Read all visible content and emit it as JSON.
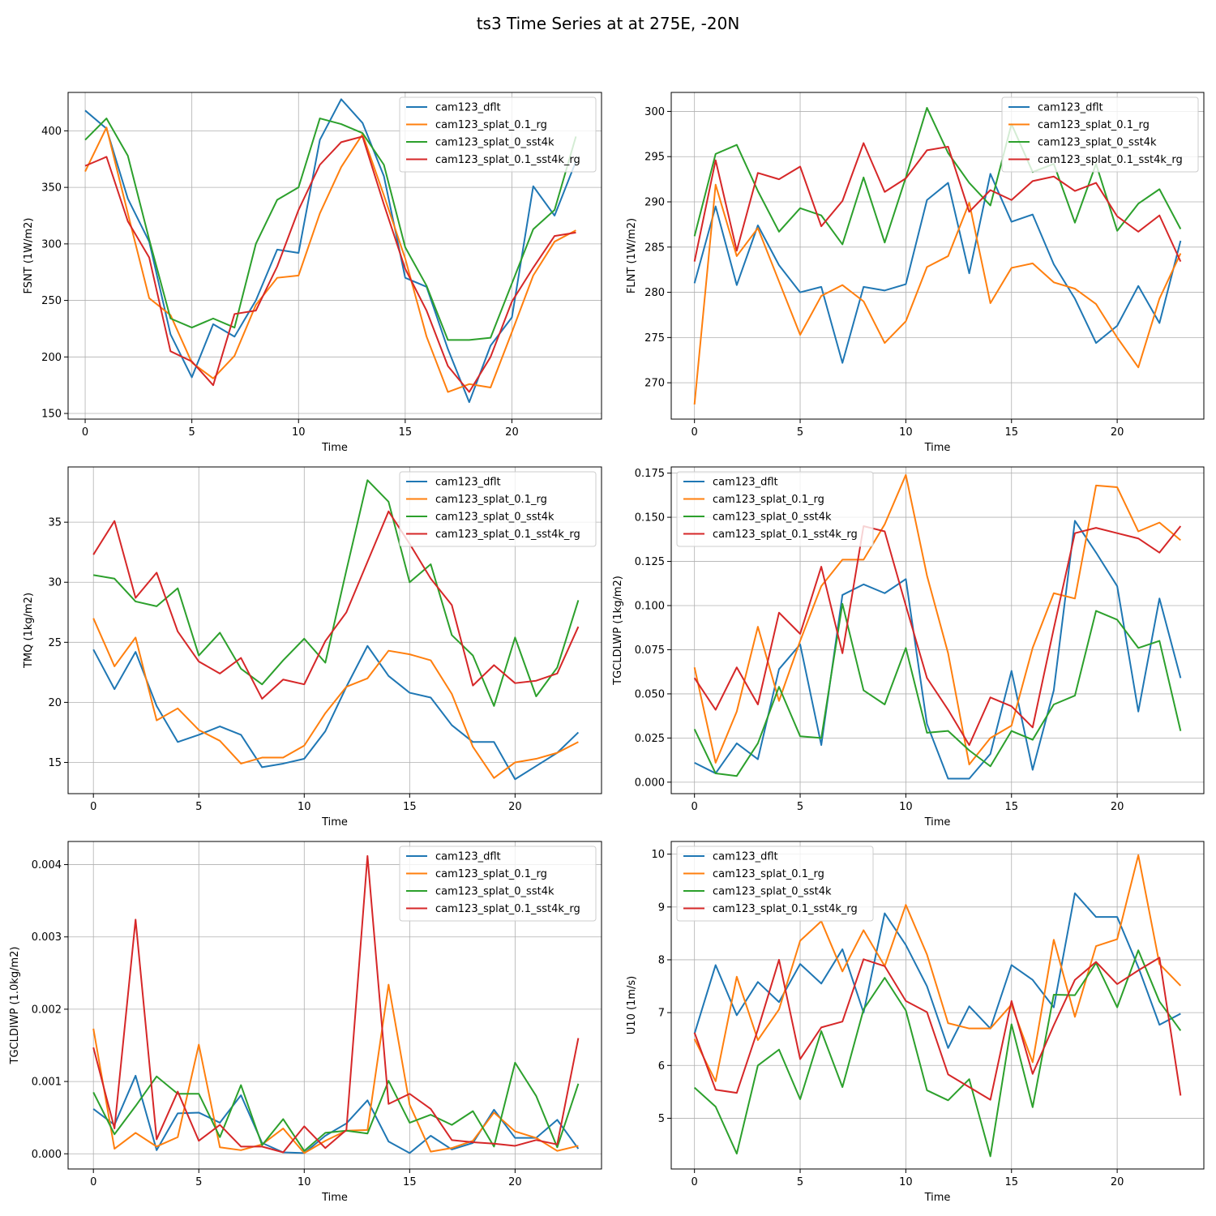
{
  "figure": {
    "title": "ts3 Time Series at at 275E, -20N"
  },
  "colors": {
    "cam123_dflt": "#1f77b4",
    "cam123_splat_0.1_rg": "#ff7f0e",
    "cam123_splat_0_sst4k": "#2ca02c",
    "cam123_splat_0.1_sst4k_rg": "#d62728"
  },
  "chart_data": [
    {
      "type": "line",
      "title": "",
      "xlabel": "Time",
      "ylabel": "FSNT (1W/m2)",
      "xlim": [
        -0.8,
        24.2
      ],
      "ylim": [
        145,
        434
      ],
      "xticks": [
        0,
        5,
        10,
        15,
        20
      ],
      "yticks": [
        150,
        200,
        250,
        300,
        350,
        400
      ],
      "legend_position": "top-right",
      "grid": true,
      "x": [
        0,
        1,
        2,
        3,
        4,
        5,
        6,
        7,
        8,
        9,
        10,
        11,
        12,
        13,
        14,
        15,
        16,
        17,
        18,
        19,
        20,
        21,
        22,
        23
      ],
      "series": [
        {
          "name": "cam123_dflt",
          "values": [
            418,
            402,
            340,
            302,
            220,
            182,
            229,
            218,
            250,
            295,
            292,
            392,
            428,
            407,
            360,
            270,
            262,
            207,
            160,
            210,
            235,
            351,
            325,
            373
          ]
        },
        {
          "name": "cam123_splat_0.1_rg",
          "values": [
            364,
            403,
            327,
            252,
            237,
            195,
            181,
            201,
            246,
            270,
            272,
            327,
            368,
            397,
            343,
            287,
            218,
            169,
            176,
            173,
            222,
            272,
            302,
            312
          ]
        },
        {
          "name": "cam123_splat_0_sst4k",
          "values": [
            392,
            411,
            378,
            304,
            234,
            226,
            234,
            226,
            300,
            339,
            350,
            411,
            406,
            398,
            370,
            297,
            263,
            215,
            215,
            217,
            265,
            313,
            330,
            395
          ]
        },
        {
          "name": "cam123_splat_0.1_sst4k_rg",
          "values": [
            369,
            377,
            320,
            288,
            205,
            196,
            175,
            238,
            241,
            280,
            330,
            370,
            390,
            395,
            335,
            278,
            241,
            192,
            169,
            200,
            249,
            279,
            307,
            310
          ]
        }
      ]
    },
    {
      "type": "line",
      "title": "",
      "xlabel": "Time",
      "ylabel": "FLNT (1W/m2)",
      "xlim": [
        -1.1,
        24.1
      ],
      "ylim": [
        265.98,
        302.1
      ],
      "xticks": [
        0,
        5,
        10,
        15,
        20
      ],
      "yticks": [
        270,
        275,
        280,
        285,
        290,
        295,
        300
      ],
      "legend_position": "top-right",
      "grid": true,
      "x": [
        0,
        1,
        2,
        3,
        4,
        5,
        6,
        7,
        8,
        9,
        10,
        11,
        12,
        13,
        14,
        15,
        16,
        17,
        18,
        19,
        20,
        21,
        22,
        23
      ],
      "series": [
        {
          "name": "cam123_dflt",
          "values": [
            281,
            289.5,
            280.8,
            287.4,
            283,
            280,
            280.6,
            272.2,
            280.6,
            280.2,
            280.9,
            290.2,
            292.1,
            282.1,
            293.1,
            287.8,
            288.6,
            283.1,
            279.3,
            274.4,
            276.3,
            280.7,
            276.6,
            285.7
          ]
        },
        {
          "name": "cam123_splat_0.1_rg",
          "values": [
            267.6,
            291.9,
            284,
            287.1,
            281.2,
            275.3,
            279.6,
            280.8,
            279,
            274.4,
            276.8,
            282.8,
            284,
            289.9,
            278.8,
            282.7,
            283.2,
            281.1,
            280.4,
            278.7,
            275,
            271.7,
            279.3,
            284.3
          ]
        },
        {
          "name": "cam123_splat_0_sst4k",
          "values": [
            286.2,
            295.3,
            296.3,
            291.2,
            286.7,
            289.3,
            288.5,
            285.3,
            292.7,
            285.5,
            292.7,
            300.4,
            295.4,
            292.1,
            289.6,
            298.6,
            293.3,
            294.2,
            287.7,
            294.2,
            286.8,
            289.8,
            291.4,
            287
          ]
        },
        {
          "name": "cam123_splat_0.1_sst4k_rg",
          "values": [
            283.4,
            294.6,
            284.6,
            293.2,
            292.5,
            293.9,
            287.3,
            290.1,
            296.5,
            291.1,
            292.6,
            295.7,
            296.1,
            288.9,
            291.3,
            290.2,
            292.3,
            292.8,
            291.2,
            292.1,
            288.4,
            286.7,
            288.5,
            283.4
          ]
        }
      ]
    },
    {
      "type": "line",
      "title": "",
      "xlabel": "Time",
      "ylabel": "TMQ (1kg/m2)",
      "xlim": [
        -1.2,
        24.1
      ],
      "ylim": [
        12.4,
        39.6
      ],
      "xticks": [
        0,
        5,
        10,
        15,
        20
      ],
      "yticks": [
        15,
        20,
        25,
        30,
        35
      ],
      "legend_position": "top-right",
      "grid": true,
      "x": [
        0,
        1,
        2,
        3,
        4,
        5,
        6,
        7,
        8,
        9,
        10,
        11,
        12,
        13,
        14,
        15,
        16,
        17,
        18,
        19,
        20,
        21,
        22,
        23
      ],
      "series": [
        {
          "name": "cam123_dflt",
          "values": [
            24.4,
            21.1,
            24.2,
            19.7,
            16.7,
            17.3,
            18,
            17.3,
            14.6,
            14.9,
            15.3,
            17.6,
            21.3,
            24.7,
            22.2,
            20.8,
            20.4,
            18.1,
            16.7,
            16.7,
            13.6,
            14.7,
            15.8,
            17.5
          ]
        },
        {
          "name": "cam123_splat_0.1_rg",
          "values": [
            27,
            23,
            25.4,
            18.5,
            19.5,
            17.7,
            16.8,
            14.9,
            15.4,
            15.4,
            16.4,
            19.1,
            21.3,
            22,
            24.3,
            24,
            23.5,
            20.7,
            16.3,
            13.7,
            15,
            15.3,
            15.8,
            16.7
          ]
        },
        {
          "name": "cam123_splat_0_sst4k",
          "values": [
            30.6,
            30.3,
            28.4,
            28,
            29.5,
            23.9,
            25.8,
            22.8,
            21.5,
            23.5,
            25.3,
            23.3,
            31,
            38.5,
            36.7,
            30,
            31.5,
            25.6,
            23.9,
            19.7,
            25.4,
            20.5,
            22.9,
            28.5
          ]
        },
        {
          "name": "cam123_splat_0.1_sst4k_rg",
          "values": [
            32.3,
            35.1,
            28.7,
            30.8,
            25.9,
            23.4,
            22.4,
            23.7,
            20.3,
            21.9,
            21.5,
            25.1,
            27.5,
            31.7,
            35.9,
            33.2,
            30.3,
            28.1,
            21.4,
            23.1,
            21.6,
            21.8,
            22.4,
            26.3
          ]
        }
      ]
    },
    {
      "type": "line",
      "title": "",
      "xlabel": "Time",
      "ylabel": "TGCLDLWP (1kg/m2)",
      "xlim": [
        -1.1,
        24.1
      ],
      "ylim": [
        -0.0065,
        0.1785
      ],
      "xticks": [
        0,
        5,
        10,
        15,
        20
      ],
      "yticks": [
        0.0,
        0.025,
        0.05,
        0.075,
        0.1,
        0.125,
        0.15,
        0.175
      ],
      "ytick_labels": [
        "0.000",
        "0.025",
        "0.050",
        "0.075",
        "0.100",
        "0.125",
        "0.150",
        "0.175"
      ],
      "legend_position": "top-left",
      "grid": true,
      "x": [
        0,
        1,
        2,
        3,
        4,
        5,
        6,
        7,
        8,
        9,
        10,
        11,
        12,
        13,
        14,
        15,
        16,
        17,
        18,
        19,
        20,
        21,
        22,
        23
      ],
      "series": [
        {
          "name": "cam123_dflt",
          "values": [
            0.011,
            0.005,
            0.022,
            0.013,
            0.064,
            0.078,
            0.021,
            0.106,
            0.112,
            0.107,
            0.115,
            0.033,
            0.002,
            0.002,
            0.016,
            0.063,
            0.007,
            0.052,
            0.148,
            0.13,
            0.111,
            0.04,
            0.104,
            0.059
          ]
        },
        {
          "name": "cam123_splat_0.1_rg",
          "values": [
            0.065,
            0.011,
            0.04,
            0.088,
            0.046,
            0.08,
            0.111,
            0.126,
            0.126,
            0.146,
            0.174,
            0.117,
            0.073,
            0.01,
            0.025,
            0.032,
            0.076,
            0.107,
            0.104,
            0.168,
            0.167,
            0.142,
            0.147,
            0.137
          ]
        },
        {
          "name": "cam123_splat_0_sst4k",
          "values": [
            0.03,
            0.005,
            0.0035,
            0.022,
            0.054,
            0.026,
            0.025,
            0.101,
            0.052,
            0.044,
            0.076,
            0.028,
            0.029,
            0.018,
            0.009,
            0.029,
            0.024,
            0.044,
            0.049,
            0.097,
            0.092,
            0.076,
            0.08,
            0.029
          ]
        },
        {
          "name": "cam123_splat_0.1_sst4k_rg",
          "values": [
            0.059,
            0.041,
            0.065,
            0.044,
            0.096,
            0.084,
            0.122,
            0.073,
            0.145,
            0.142,
            0.1,
            0.059,
            0.041,
            0.021,
            0.048,
            0.043,
            0.031,
            0.087,
            0.141,
            0.144,
            0.141,
            0.138,
            0.13,
            0.145
          ]
        }
      ]
    },
    {
      "type": "line",
      "title": "",
      "xlabel": "Time",
      "ylabel": "TGCLDIWP (1.0kg/m2)",
      "xlim": [
        -1.2,
        24.1
      ],
      "ylim": [
        -0.00021,
        0.00432
      ],
      "xticks": [
        0,
        5,
        10,
        15,
        20
      ],
      "yticks": [
        0.0,
        0.001,
        0.002,
        0.003,
        0.004
      ],
      "ytick_labels": [
        "0.000",
        "0.001",
        "0.002",
        "0.003",
        "0.004"
      ],
      "legend_position": "top-right",
      "grid": true,
      "x": [
        0,
        1,
        2,
        3,
        4,
        5,
        6,
        7,
        8,
        9,
        10,
        11,
        12,
        13,
        14,
        15,
        16,
        17,
        18,
        19,
        20,
        21,
        22,
        23
      ],
      "series": [
        {
          "name": "cam123_dflt",
          "values": [
            0.00062,
            0.0004,
            0.00108,
            5e-05,
            0.00056,
            0.00057,
            0.00043,
            0.00081,
            0.00015,
            2e-05,
            1e-05,
            0.00025,
            0.00042,
            0.00074,
            0.00017,
            1e-05,
            0.00025,
            6e-05,
            0.00015,
            0.00061,
            0.00022,
            0.00022,
            0.00047,
            7e-05
          ]
        },
        {
          "name": "cam123_splat_0.1_rg",
          "values": [
            0.00173,
            7e-05,
            0.00029,
            0.0001,
            0.00023,
            0.00151,
            9e-05,
            5e-05,
            0.00013,
            0.00035,
            1e-05,
            0.00018,
            0.00032,
            0.00033,
            0.00234,
            0.00068,
            3e-05,
            8e-05,
            0.00018,
            0.00057,
            0.00031,
            0.00022,
            4e-05,
            0.00011
          ]
        },
        {
          "name": "cam123_splat_0_sst4k",
          "values": [
            0.00085,
            0.00027,
            0.00066,
            0.00107,
            0.00083,
            0.00083,
            0.00023,
            0.00095,
            0.00012,
            0.00048,
            4e-05,
            0.00029,
            0.00032,
            0.00028,
            0.00101,
            0.00043,
            0.00054,
            0.0004,
            0.00059,
            0.0001,
            0.00126,
            0.0008,
            9e-05,
            0.00097
          ]
        },
        {
          "name": "cam123_splat_0.1_sst4k_rg",
          "values": [
            0.00147,
            0.00035,
            0.00324,
            0.0002,
            0.00086,
            0.00018,
            0.0004,
            0.0001,
            0.0001,
            2e-05,
            0.00038,
            8e-05,
            0.00033,
            0.00412,
            0.00069,
            0.00083,
            0.00062,
            0.00019,
            0.00016,
            0.00014,
            0.00011,
            0.00019,
            0.00013,
            0.0016
          ]
        }
      ]
    },
    {
      "type": "line",
      "title": "",
      "xlabel": "Time",
      "ylabel": "U10 (1m/s)",
      "xlim": [
        -1.1,
        24.1
      ],
      "ylim": [
        4.04,
        10.24
      ],
      "xticks": [
        0,
        5,
        10,
        15,
        20
      ],
      "yticks": [
        5,
        6,
        7,
        8,
        9,
        10
      ],
      "legend_position": "top-left",
      "grid": true,
      "x": [
        0,
        1,
        2,
        3,
        4,
        5,
        6,
        7,
        8,
        9,
        10,
        11,
        12,
        13,
        14,
        15,
        16,
        17,
        18,
        19,
        20,
        21,
        22,
        23
      ],
      "series": [
        {
          "name": "cam123_dflt",
          "values": [
            6.6,
            7.9,
            6.95,
            7.58,
            7.2,
            7.92,
            7.55,
            8.2,
            7.0,
            8.88,
            8.28,
            7.5,
            6.33,
            7.12,
            6.7,
            7.9,
            7.62,
            7.1,
            9.26,
            8.81,
            8.81,
            7.86,
            6.77,
            6.98
          ]
        },
        {
          "name": "cam123_splat_0.1_rg",
          "values": [
            6.5,
            5.7,
            7.68,
            6.48,
            7.06,
            8.36,
            8.73,
            7.78,
            8.56,
            7.88,
            9.04,
            8.1,
            6.8,
            6.7,
            6.7,
            7.15,
            6.06,
            8.38,
            6.92,
            8.26,
            8.39,
            9.98,
            7.92,
            7.51
          ]
        },
        {
          "name": "cam123_splat_0_sst4k",
          "values": [
            5.58,
            5.22,
            4.33,
            6.0,
            6.3,
            5.36,
            6.65,
            5.59,
            7.06,
            7.66,
            7.04,
            5.53,
            5.34,
            5.74,
            4.28,
            6.78,
            5.21,
            7.34,
            7.33,
            7.94,
            7.1,
            8.18,
            7.21,
            6.66
          ]
        },
        {
          "name": "cam123_splat_0.1_sst4k_rg",
          "values": [
            6.62,
            5.54,
            5.48,
            6.68,
            8.0,
            6.12,
            6.72,
            6.83,
            8.01,
            7.88,
            7.22,
            7.01,
            5.83,
            5.59,
            5.35,
            7.22,
            5.84,
            6.76,
            7.62,
            7.96,
            7.54,
            7.8,
            8.04,
            5.43
          ]
        }
      ]
    }
  ]
}
